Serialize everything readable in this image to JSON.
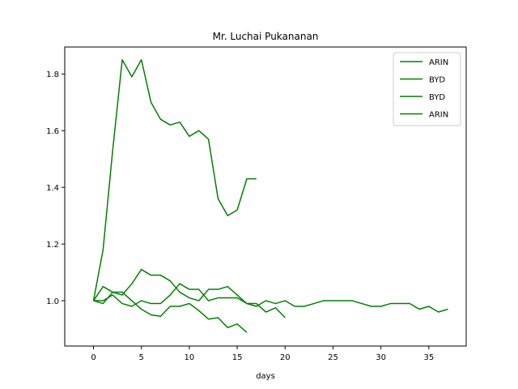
{
  "chart_data": {
    "type": "line",
    "title": "Mr. Luchai Pukananan",
    "xlabel": "days",
    "ylabel": "",
    "xlim": [
      -3.0,
      38.9
    ],
    "ylim": [
      0.84,
      1.895
    ],
    "x_ticks": [
      0,
      5,
      10,
      15,
      20,
      25,
      30,
      35
    ],
    "y_ticks": [
      1.0,
      1.2,
      1.4,
      1.6,
      1.8
    ],
    "y_tick_labels": [
      "1.0",
      "1.2",
      "1.4",
      "1.6",
      "1.8"
    ],
    "grid": false,
    "legend_position": "top-right",
    "line_color": "#008000",
    "series": [
      {
        "name": "ARIN",
        "x": [
          0,
          1,
          2,
          3,
          4,
          5,
          6,
          7,
          8,
          9,
          10,
          11,
          12,
          13,
          14,
          15,
          16,
          17
        ],
        "y": [
          1.0,
          1.18,
          1.53,
          1.85,
          1.79,
          1.85,
          1.7,
          1.64,
          1.62,
          1.63,
          1.58,
          1.6,
          1.57,
          1.36,
          1.3,
          1.32,
          1.43,
          1.43
        ]
      },
      {
        "name": "BYD",
        "x": [
          0,
          1,
          2,
          3,
          4,
          5,
          6,
          7,
          8,
          9,
          10,
          11,
          12,
          13,
          14,
          15,
          16
        ],
        "y": [
          1.0,
          1.05,
          1.03,
          1.03,
          1.0,
          0.97,
          0.95,
          0.945,
          0.98,
          0.98,
          0.99,
          0.965,
          0.935,
          0.94,
          0.905,
          0.918,
          0.888
        ]
      },
      {
        "name": "BYD",
        "x": [
          0,
          1,
          2,
          3,
          4,
          5,
          6,
          7,
          8,
          9,
          10,
          11,
          12,
          13,
          14,
          15,
          16,
          17,
          18,
          19,
          20
        ],
        "y": [
          1.0,
          0.99,
          1.03,
          1.02,
          1.06,
          1.11,
          1.09,
          1.09,
          1.07,
          1.03,
          1.01,
          1.0,
          1.04,
          1.04,
          1.05,
          1.02,
          0.99,
          0.99,
          0.96,
          0.975,
          0.94
        ]
      },
      {
        "name": "ARIN",
        "x": [
          0,
          1,
          2,
          3,
          4,
          5,
          6,
          7,
          8,
          9,
          10,
          11,
          12,
          13,
          14,
          15,
          16,
          17,
          18,
          19,
          20,
          21,
          22,
          23,
          24,
          25,
          26,
          27,
          28,
          29,
          30,
          31,
          32,
          33,
          34,
          35,
          36,
          37
        ],
        "y": [
          1.0,
          1.0,
          1.02,
          0.99,
          0.98,
          1.0,
          0.99,
          0.99,
          1.02,
          1.06,
          1.04,
          1.04,
          1.0,
          1.01,
          1.01,
          1.01,
          0.99,
          0.98,
          1.0,
          0.99,
          1.0,
          0.98,
          0.98,
          0.99,
          1.0,
          1.0,
          1.0,
          1.0,
          0.99,
          0.98,
          0.98,
          0.99,
          0.99,
          0.99,
          0.97,
          0.98,
          0.96,
          0.97
        ]
      }
    ]
  }
}
